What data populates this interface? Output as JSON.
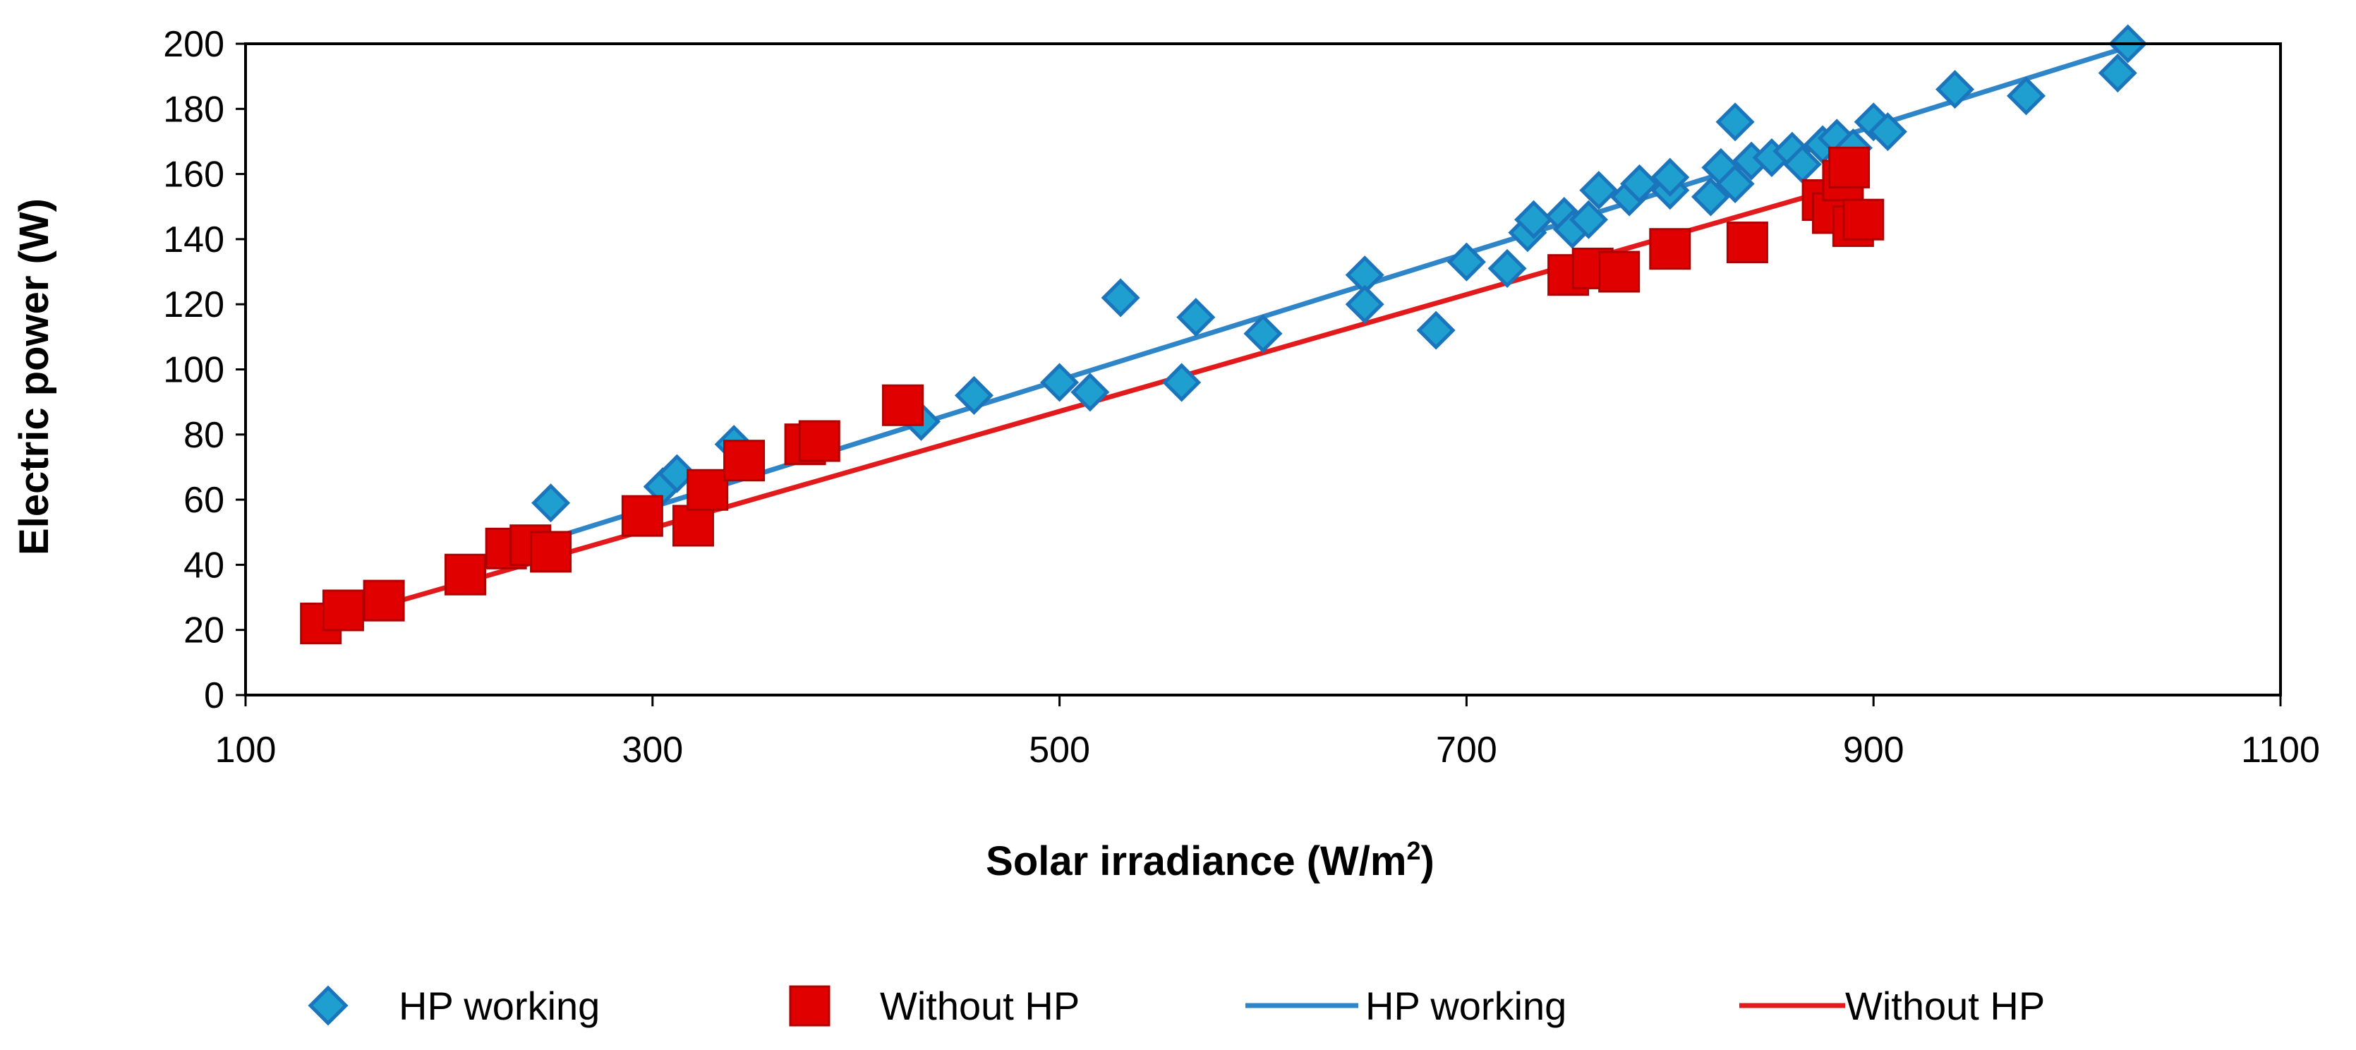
{
  "chart_data": {
    "type": "scatter",
    "xlabel": "Solar irradiance (W/m",
    "xlabel_superscript": "2",
    "xlabel_suffix": ")",
    "ylabel": "Electric power (W)",
    "xlim": [
      100,
      1100
    ],
    "ylim": [
      0,
      200
    ],
    "xticks": [
      "100",
      "300",
      "500",
      "700",
      "900",
      "1100"
    ],
    "yticks": [
      "0",
      "20",
      "40",
      "60",
      "80",
      "100",
      "120",
      "140",
      "160",
      "180",
      "200"
    ],
    "colors": {
      "hp": "#1f9fd0",
      "hp_edge": "#1b75bc",
      "hp_line": "#2e86c8",
      "without": "#e00000",
      "without_line": "#e31a1c"
    },
    "series": [
      {
        "name": "HP working",
        "marker": "diamond",
        "points": [
          [
            250,
            59
          ],
          [
            305,
            64
          ],
          [
            312,
            68
          ],
          [
            340,
            77
          ],
          [
            432,
            84
          ],
          [
            458,
            92
          ],
          [
            500,
            96
          ],
          [
            515,
            93
          ],
          [
            530,
            122
          ],
          [
            560,
            96
          ],
          [
            567,
            116
          ],
          [
            600,
            111
          ],
          [
            650,
            129
          ],
          [
            650,
            120
          ],
          [
            685,
            112
          ],
          [
            700,
            133
          ],
          [
            720,
            131
          ],
          [
            730,
            142
          ],
          [
            733,
            146
          ],
          [
            748,
            147
          ],
          [
            752,
            143
          ],
          [
            760,
            146
          ],
          [
            765,
            155
          ],
          [
            780,
            153
          ],
          [
            785,
            157
          ],
          [
            800,
            155
          ],
          [
            800,
            159
          ],
          [
            820,
            153
          ],
          [
            825,
            162
          ],
          [
            832,
            157
          ],
          [
            832,
            176
          ],
          [
            840,
            164
          ],
          [
            850,
            165
          ],
          [
            860,
            167
          ],
          [
            865,
            163
          ],
          [
            875,
            169
          ],
          [
            882,
            171
          ],
          [
            890,
            168
          ],
          [
            900,
            176
          ],
          [
            907,
            173
          ],
          [
            940,
            186
          ],
          [
            975,
            184
          ],
          [
            1020,
            191
          ],
          [
            1025,
            200
          ]
        ]
      },
      {
        "name": "Without HP",
        "marker": "square",
        "points": [
          [
            137,
            22
          ],
          [
            148,
            26
          ],
          [
            168,
            29
          ],
          [
            208,
            37
          ],
          [
            228,
            45
          ],
          [
            240,
            46
          ],
          [
            250,
            44
          ],
          [
            295,
            55
          ],
          [
            320,
            52
          ],
          [
            327,
            63
          ],
          [
            345,
            72
          ],
          [
            375,
            77
          ],
          [
            382,
            78
          ],
          [
            423,
            89
          ],
          [
            750,
            129
          ],
          [
            762,
            131
          ],
          [
            775,
            130
          ],
          [
            800,
            137
          ],
          [
            838,
            139
          ],
          [
            875,
            152
          ],
          [
            880,
            148
          ],
          [
            885,
            158
          ],
          [
            888,
            162
          ],
          [
            890,
            144
          ],
          [
            895,
            146
          ]
        ]
      },
      {
        "name": "HP working",
        "type": "line",
        "trend": [
          [
            250,
            48
          ],
          [
            1025,
            199
          ]
        ]
      },
      {
        "name": "Without HP",
        "type": "line",
        "trend": [
          [
            137,
            22
          ],
          [
            895,
            158
          ]
        ]
      }
    ],
    "legend": {
      "placement": "bottom",
      "entries": [
        "HP working",
        "Without HP",
        "HP working",
        "Without HP"
      ]
    }
  }
}
